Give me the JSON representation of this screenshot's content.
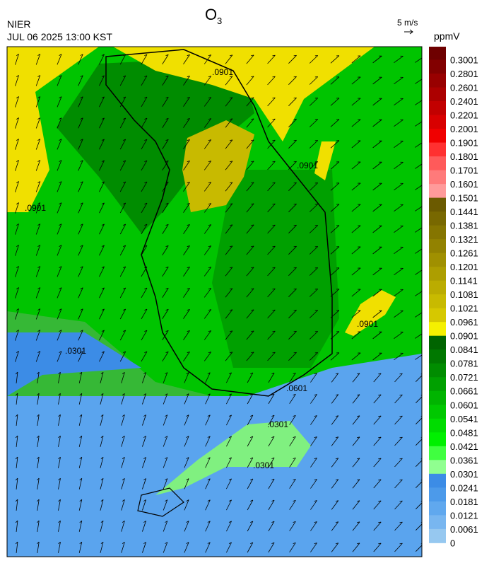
{
  "header": {
    "agency": "NIER",
    "datetime": "JUL 06 2025 13:00 KST",
    "title": "O",
    "title_sub": "3",
    "wind_reference": "5 m/s"
  },
  "colorbar": {
    "unit": "ppmV",
    "labels": [
      "0.3001",
      "0.2801",
      "0.2601",
      "0.2401",
      "0.2201",
      "0.2001",
      "0.1901",
      "0.1801",
      "0.1701",
      "0.1601",
      "0.1501",
      "0.1441",
      "0.1381",
      "0.1321",
      "0.1261",
      "0.1201",
      "0.1141",
      "0.1081",
      "0.1021",
      "0.0961",
      "0.0901",
      "0.0841",
      "0.0781",
      "0.0721",
      "0.0661",
      "0.0601",
      "0.0541",
      "0.0481",
      "0.0421",
      "0.0361",
      "0.0301",
      "0.0241",
      "0.0181",
      "0.0121",
      "0.0061",
      "0"
    ],
    "colors": [
      "#6e0000",
      "#820000",
      "#980000",
      "#ac0000",
      "#c20000",
      "#d80000",
      "#f00000",
      "#ff3030",
      "#ff5a5a",
      "#ff7a7a",
      "#ff9a9a",
      "#6b5a00",
      "#786800",
      "#857500",
      "#928200",
      "#a09000",
      "#ad9e00",
      "#bbac00",
      "#c8ba00",
      "#d6c800",
      "#f5f000",
      "#006400",
      "#007800",
      "#008c00",
      "#00a000",
      "#00b400",
      "#00c800",
      "#00dc00",
      "#00f000",
      "#40ff40",
      "#90ff90",
      "#3c8ce6",
      "#4c9aea",
      "#60a8ee",
      "#78b6f0",
      "#96c8f0"
    ]
  },
  "contour_labels": [
    ".0901",
    ".0901",
    ".0901",
    ".0901",
    ".0301",
    ".0301",
    ".0301",
    ".0601"
  ]
}
